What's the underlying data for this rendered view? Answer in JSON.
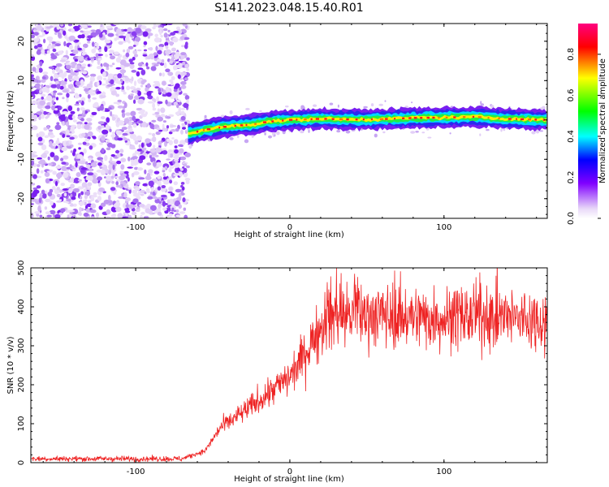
{
  "title": "S141.2023.048.15.40.R01",
  "chart_data": [
    {
      "type": "heatmap",
      "xlabel": "Height of straight line (km)",
      "ylabel": "Frequency (Hz)",
      "xlim": [
        -168,
        167
      ],
      "ylim": [
        -25,
        24.5
      ],
      "xticks": [
        -100,
        0,
        100
      ],
      "yticks": [
        -20,
        -10,
        0,
        10,
        20
      ],
      "colorbar": {
        "label": "Normalized spectral amplitude",
        "range": [
          0.0,
          0.95
        ],
        "ticks": [
          0.0,
          0.2,
          0.4,
          0.6,
          0.8
        ],
        "colors": [
          "#ffffff",
          "#e8d8f8",
          "#8000ff",
          "#0000ff",
          "#00ffff",
          "#00ff00",
          "#ffff00",
          "#ff0000",
          "#ff0080"
        ]
      },
      "features": {
        "noise_region_x": [
          -168,
          -66
        ],
        "signal_track": {
          "x": [
            -66,
            -55,
            -40,
            -25,
            -15,
            0,
            20,
            40,
            60,
            80,
            100,
            120,
            140,
            167
          ],
          "freq": [
            -3.5,
            -2.5,
            -1.6,
            -1.2,
            -0.5,
            0,
            0.3,
            0.1,
            0.2,
            0.5,
            0.6,
            0.8,
            0.3,
            0
          ]
        }
      },
      "grid": false
    },
    {
      "type": "line",
      "xlabel": "Height of straight line (km)",
      "ylabel": "SNR (10 * v/v)",
      "xlim": [
        -168,
        167
      ],
      "ylim": [
        0,
        500
      ],
      "xticks": [
        -100,
        0,
        100
      ],
      "yticks": [
        0,
        100,
        200,
        300,
        400,
        500
      ],
      "series": [
        {
          "color": "#ee2222",
          "x": [
            -168,
            -120,
            -70,
            -55,
            -45,
            -30,
            -15,
            0,
            10,
            20,
            25,
            40,
            60,
            80,
            100,
            120,
            140,
            167
          ],
          "values": [
            10,
            10,
            10,
            30,
            90,
            130,
            175,
            220,
            280,
            350,
            380,
            380,
            380,
            375,
            370,
            375,
            370,
            365
          ]
        }
      ],
      "grid": false
    }
  ]
}
